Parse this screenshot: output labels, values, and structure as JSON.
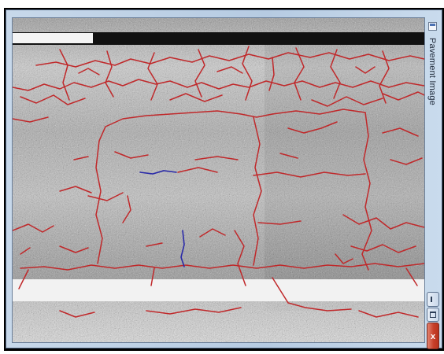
{
  "window": {
    "title": "Pavement Image",
    "controls": {
      "minimize_icon": "minimize-icon",
      "maximize_icon": "maximize-icon",
      "close_glyph": "x"
    }
  },
  "image": {
    "description_icon": "pavement-crack-image",
    "lane_marking_color": "#ffffff",
    "crack_overlay_color": "#c0282a",
    "manual_annotation_color": "#2a2aa8"
  }
}
